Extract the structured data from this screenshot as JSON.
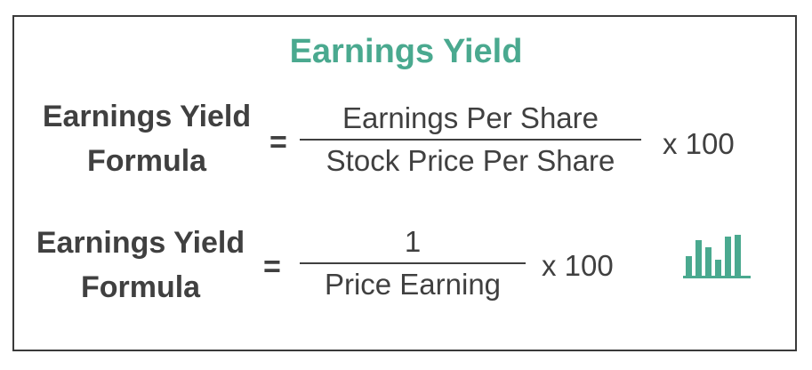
{
  "title": "Earnings Yield",
  "formula1": {
    "lhs_line1": "Earnings Yield",
    "lhs_line2": "Formula",
    "equals": "=",
    "numerator": "Earnings Per Share",
    "denominator": "Stock Price Per Share",
    "multiplier": "x 100"
  },
  "formula2": {
    "lhs_line1": "Earnings Yield",
    "lhs_line2": "Formula",
    "equals": "=",
    "numerator": "1",
    "denominator": "Price Earning",
    "multiplier": "x 100"
  },
  "icon": {
    "name": "bar-chart-icon",
    "color": "#4aa98f"
  },
  "colors": {
    "accent": "#4aa98f",
    "text": "#404040",
    "border": "#3a3a3a"
  }
}
